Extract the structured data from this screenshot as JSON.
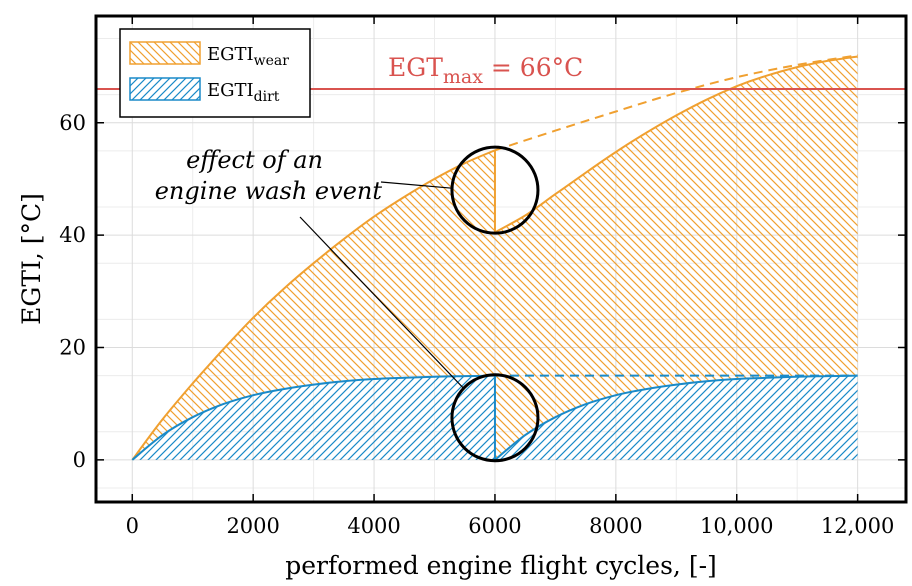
{
  "chart_data": {
    "type": "area",
    "xlabel": "performed engine flight cycles, [-]",
    "ylabel": "EGTI, [°C]",
    "xlim": [
      -600,
      12800
    ],
    "ylim": [
      -7.5,
      79
    ],
    "x_ticks": [
      0,
      2000,
      4000,
      6000,
      8000,
      10000,
      12000
    ],
    "x_tick_labels": [
      "0",
      "2000",
      "4000",
      "6000",
      "8000",
      "10,000",
      "12,000"
    ],
    "y_ticks": [
      0,
      20,
      40,
      60
    ],
    "y_tick_labels": [
      "0",
      "20",
      "40",
      "60"
    ],
    "grid": true,
    "legend_position": "top-left",
    "legend": [
      {
        "base": "EGTI",
        "sub": "wear",
        "color": "#f0a030",
        "hatch": "backslash"
      },
      {
        "base": "EGTI",
        "sub": "dirt",
        "color": "#1a8ac8",
        "hatch": "slash"
      }
    ],
    "reference_line": {
      "y": 66,
      "color": "#d9534f",
      "label_base": "EGT",
      "label_sub": "max",
      "label_rest": " = 66°C"
    },
    "wash_event_x": 6000,
    "annotation": {
      "lines": [
        "effect of an",
        "engine wash event"
      ]
    },
    "series": [
      {
        "role": "total",
        "color": "#f0a030",
        "segments": [
          {
            "x": [
              0,
              500,
              1000,
              1500,
              2000,
              2500,
              3000,
              3500,
              4000,
              4500,
              5000,
              5500,
              6000
            ],
            "y": [
              0,
              7.2,
              13.6,
              19.6,
              25.3,
              30.4,
              35.0,
              39.3,
              43.3,
              46.8,
              50.0,
              52.8,
              55.1
            ]
          },
          {
            "x": [
              6000,
              6500,
              7000,
              7500,
              8000,
              8500,
              9000,
              9500,
              10000,
              10500,
              11000,
              11500,
              12000
            ],
            "y": [
              40.5,
              43.5,
              47.3,
              51.1,
              54.8,
              58.2,
              61.3,
              64.1,
              66.5,
              68.4,
              69.9,
              71.0,
              71.8
            ]
          }
        ],
        "ghost": {
          "x": [
            6000,
            7000,
            8000,
            9000,
            10000,
            11000,
            12000
          ],
          "y": [
            55.1,
            58.6,
            62.0,
            65.3,
            68.1,
            70.3,
            72.0
          ]
        }
      },
      {
        "role": "dirt",
        "color": "#1a8ac8",
        "segments": [
          {
            "x": [
              0,
              500,
              1000,
              1500,
              2000,
              2500,
              3000,
              3500,
              4000,
              4500,
              5000,
              5500,
              6000
            ],
            "y": [
              0,
              4.4,
              7.6,
              9.9,
              11.5,
              12.6,
              13.4,
              14.0,
              14.4,
              14.6,
              14.8,
              14.9,
              15.0
            ]
          },
          {
            "x": [
              6000,
              6500,
              7000,
              7500,
              8000,
              8500,
              9000,
              9500,
              10000,
              10500,
              11000,
              11500,
              12000
            ],
            "y": [
              0,
              4.4,
              7.6,
              9.9,
              11.5,
              12.6,
              13.4,
              14.0,
              14.4,
              14.6,
              14.8,
              14.9,
              15.0
            ]
          }
        ],
        "ghost": {
          "x": [
            6000,
            12000
          ],
          "y": [
            15.0,
            15.0
          ]
        }
      }
    ]
  }
}
